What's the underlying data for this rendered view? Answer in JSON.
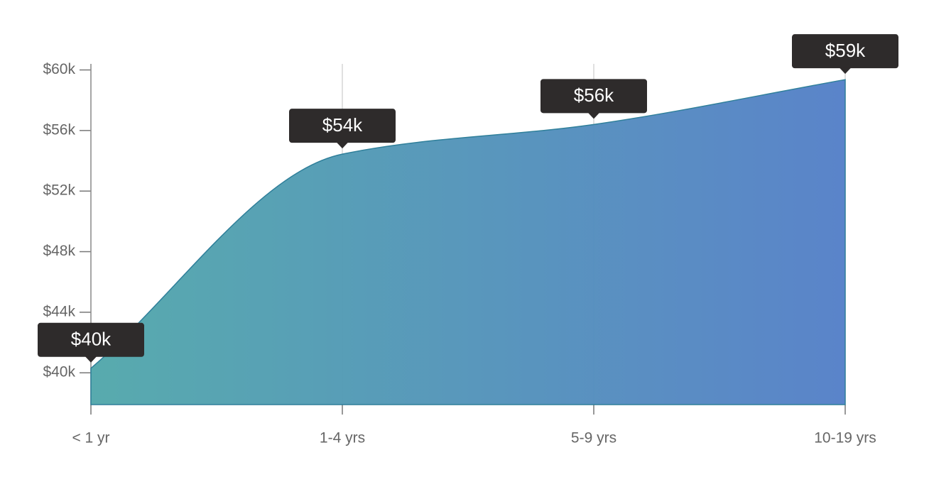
{
  "chart_data": {
    "type": "area",
    "categories": [
      "< 1 yr",
      "1-4 yrs",
      "5-9 yrs",
      "10-19 yrs"
    ],
    "values": [
      40300,
      54440,
      56400,
      59360
    ],
    "value_labels": [
      "$40k",
      "$54k",
      "$56k",
      "$59k"
    ],
    "ylim": [
      37900,
      60400
    ],
    "yticks": [
      {
        "value": 40000,
        "label": "$40k"
      },
      {
        "value": 44000,
        "label": "$44k"
      },
      {
        "value": 48000,
        "label": "$48k"
      },
      {
        "value": 52000,
        "label": "$52k"
      },
      {
        "value": 56000,
        "label": "$56k"
      },
      {
        "value": 60000,
        "label": "$60k"
      }
    ],
    "gradient": [
      "#52a8ab",
      "#5580c8"
    ],
    "line_color": "#2f7f9a",
    "grid": true
  }
}
